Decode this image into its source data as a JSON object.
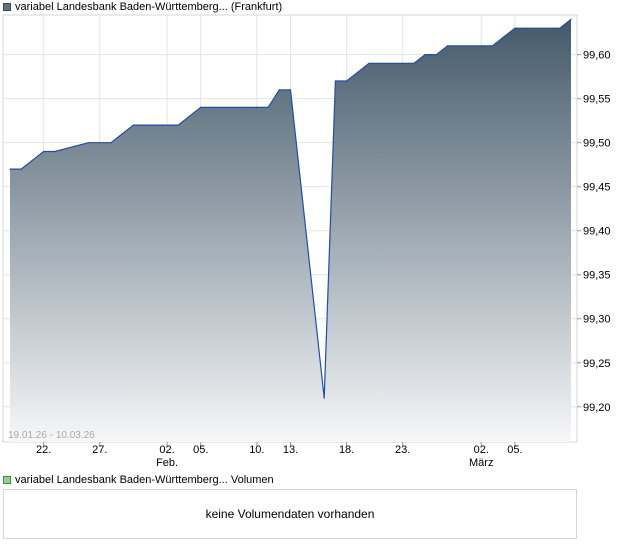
{
  "legend_price": "variabel Landesbank Baden-Württemberg... (Frankfurt)",
  "legend_volume": "variabel Landesbank Baden-Württemberg... Volumen",
  "volume_message": "keine Volumendaten vorhanden",
  "colors": {
    "line": "#1f4fa8",
    "fill_top": "#44596a",
    "fill_bottom": "#f6f7f8",
    "grid": "#e4e4e4",
    "volume_swatch": "#8fd18f"
  },
  "chart_data": {
    "type": "area",
    "date_range": "19.01.26 - 10.03.26",
    "ylim": [
      99.16,
      99.645
    ],
    "y_ticks": [
      {
        "value": 99.2,
        "label": "99,20"
      },
      {
        "value": 99.25,
        "label": "99,25"
      },
      {
        "value": 99.3,
        "label": "99,30"
      },
      {
        "value": 99.35,
        "label": "99,35"
      },
      {
        "value": 99.4,
        "label": "99,40"
      },
      {
        "value": 99.45,
        "label": "99,45"
      },
      {
        "value": 99.5,
        "label": "99,50"
      },
      {
        "value": 99.55,
        "label": "99,55"
      },
      {
        "value": 99.6,
        "label": "99,60"
      }
    ],
    "x_ticks": [
      {
        "date": "2026-01-22",
        "label": "22.",
        "sub": ""
      },
      {
        "date": "2026-01-27",
        "label": "27.",
        "sub": ""
      },
      {
        "date": "2026-02-02",
        "label": "02.",
        "sub": "Feb."
      },
      {
        "date": "2026-02-05",
        "label": "05.",
        "sub": ""
      },
      {
        "date": "2026-02-10",
        "label": "10.",
        "sub": ""
      },
      {
        "date": "2026-02-13",
        "label": "13.",
        "sub": ""
      },
      {
        "date": "2026-02-18",
        "label": "18.",
        "sub": ""
      },
      {
        "date": "2026-02-23",
        "label": "23.",
        "sub": ""
      },
      {
        "date": "2026-03-02",
        "label": "02.",
        "sub": "März"
      },
      {
        "date": "2026-03-05",
        "label": "05.",
        "sub": ""
      }
    ],
    "x": [
      "2026-01-19",
      "2026-01-20",
      "2026-01-21",
      "2026-01-22",
      "2026-01-23",
      "2026-01-26",
      "2026-01-27",
      "2026-01-28",
      "2026-01-29",
      "2026-01-30",
      "2026-02-02",
      "2026-02-03",
      "2026-02-04",
      "2026-02-05",
      "2026-02-06",
      "2026-02-09",
      "2026-02-10",
      "2026-02-11",
      "2026-02-12",
      "2026-02-13",
      "2026-02-16",
      "2026-02-17",
      "2026-02-18",
      "2026-02-19",
      "2026-02-20",
      "2026-02-23",
      "2026-02-24",
      "2026-02-25",
      "2026-02-26",
      "2026-02-27",
      "2026-03-02",
      "2026-03-03",
      "2026-03-04",
      "2026-03-05",
      "2026-03-06",
      "2026-03-09",
      "2026-03-10"
    ],
    "series": [
      {
        "values": [
          99.47,
          99.47,
          99.48,
          99.49,
          99.49,
          99.5,
          99.5,
          99.5,
          99.51,
          99.52,
          99.52,
          99.52,
          99.53,
          99.54,
          99.54,
          99.54,
          99.54,
          99.54,
          99.56,
          99.56,
          99.21,
          99.57,
          99.57,
          99.58,
          99.59,
          99.59,
          99.59,
          99.6,
          99.6,
          99.61,
          99.61,
          99.61,
          99.62,
          99.63,
          99.63,
          99.63,
          99.64
        ]
      }
    ],
    "grid": true,
    "legend": "top-left"
  }
}
